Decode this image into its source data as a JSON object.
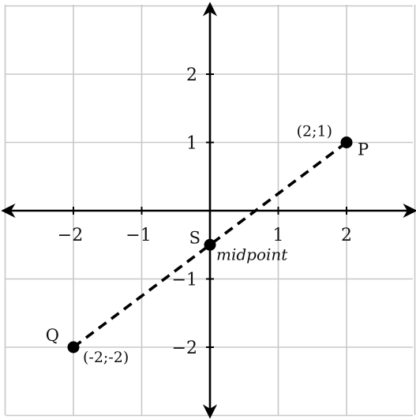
{
  "figure": {
    "x_range": [
      -3,
      3
    ],
    "y_range": [
      -3,
      3
    ],
    "x_ticks": [
      {
        "value": -2,
        "label": "−2"
      },
      {
        "value": -1,
        "label": "−1"
      },
      {
        "value": 1,
        "label": "1"
      },
      {
        "value": 2,
        "label": "2"
      }
    ],
    "y_ticks": [
      {
        "value": 2,
        "label": "2"
      },
      {
        "value": 1,
        "label": "1"
      },
      {
        "value": -1,
        "label": "−1"
      },
      {
        "value": -2,
        "label": "−2"
      }
    ],
    "points": [
      {
        "id": "P",
        "name": "P",
        "x": 2,
        "y": 1,
        "coord_label": "(2;1)"
      },
      {
        "id": "Q",
        "name": "Q",
        "x": -2,
        "y": -2,
        "coord_label": "(-2;-2)"
      },
      {
        "id": "S",
        "name": "S",
        "x": 0,
        "y": -0.5,
        "note": "midpoint"
      }
    ],
    "segment": {
      "from": "Q",
      "to": "P",
      "style": "dashed"
    },
    "colors": {
      "grid": "#c8c8c8",
      "axis": "#000000",
      "point": "#000000",
      "segment": "#000000"
    }
  }
}
